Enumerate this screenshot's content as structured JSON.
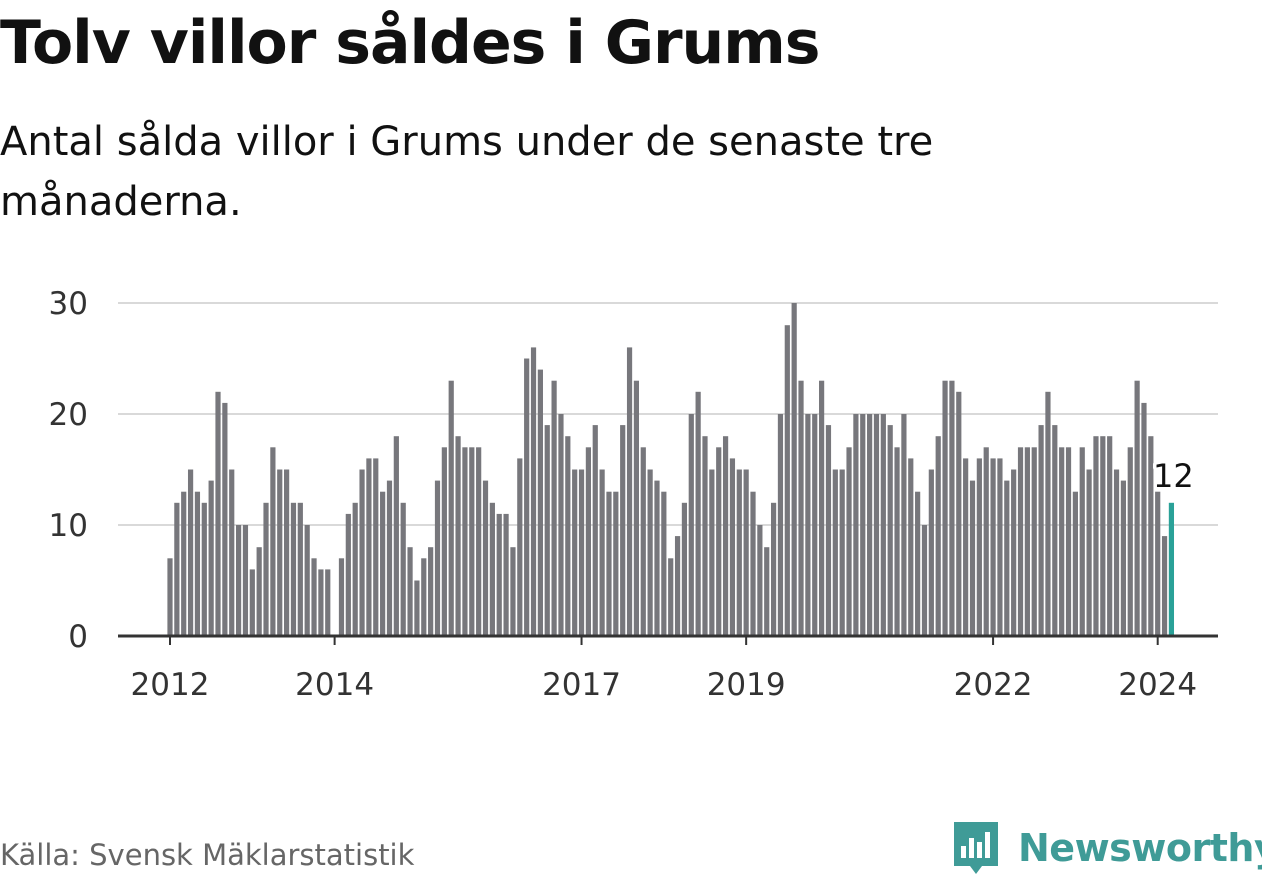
{
  "title": "Tolv villor såldes i Grums",
  "subtitle": "Antal sålda villor i Grums under de senaste tre månaderna.",
  "source": "Källa: Svensk Mäklarstatistik",
  "brand": {
    "name": "Newsworthy",
    "icon": "newsworthy-logo-icon"
  },
  "colors": {
    "bar": "#77777c",
    "highlight": "#2aa198",
    "grid": "#d9d9d9",
    "axis": "#333333",
    "brand": "#3f9b97"
  },
  "chart_data": {
    "type": "bar",
    "title": "Tolv villor såldes i Grums",
    "xlabel": "",
    "ylabel": "",
    "ylim": [
      0,
      30
    ],
    "yticks": [
      "0",
      "10",
      "20",
      "30"
    ],
    "xticks": [
      {
        "label": "2012",
        "index": 0
      },
      {
        "label": "2014",
        "index": 24
      },
      {
        "label": "2017",
        "index": 60
      },
      {
        "label": "2019",
        "index": 84
      },
      {
        "label": "2022",
        "index": 120
      },
      {
        "label": "2024",
        "index": 144
      }
    ],
    "values": [
      7,
      12,
      13,
      15,
      13,
      12,
      14,
      22,
      21,
      15,
      10,
      10,
      6,
      8,
      12,
      17,
      15,
      15,
      12,
      12,
      10,
      7,
      6,
      6,
      0,
      7,
      11,
      12,
      15,
      16,
      16,
      13,
      14,
      18,
      12,
      8,
      5,
      7,
      8,
      14,
      17,
      23,
      18,
      17,
      17,
      17,
      14,
      12,
      11,
      11,
      8,
      16,
      25,
      26,
      24,
      19,
      23,
      20,
      18,
      15,
      15,
      17,
      19,
      15,
      13,
      13,
      19,
      26,
      23,
      17,
      15,
      14,
      13,
      7,
      9,
      12,
      20,
      22,
      18,
      15,
      17,
      18,
      16,
      15,
      15,
      13,
      10,
      8,
      12,
      20,
      28,
      30,
      23,
      20,
      20,
      23,
      19,
      15,
      15,
      17,
      20,
      20,
      20,
      20,
      20,
      19,
      17,
      20,
      16,
      13,
      10,
      15,
      18,
      23,
      23,
      22,
      16,
      14,
      16,
      17,
      16,
      16,
      14,
      15,
      17,
      17,
      17,
      19,
      22,
      19,
      17,
      17,
      13,
      17,
      15,
      18,
      18,
      18,
      15,
      14,
      17,
      23,
      21,
      18,
      13,
      9,
      12
    ],
    "highlight_index": 146,
    "annotation": "12"
  }
}
